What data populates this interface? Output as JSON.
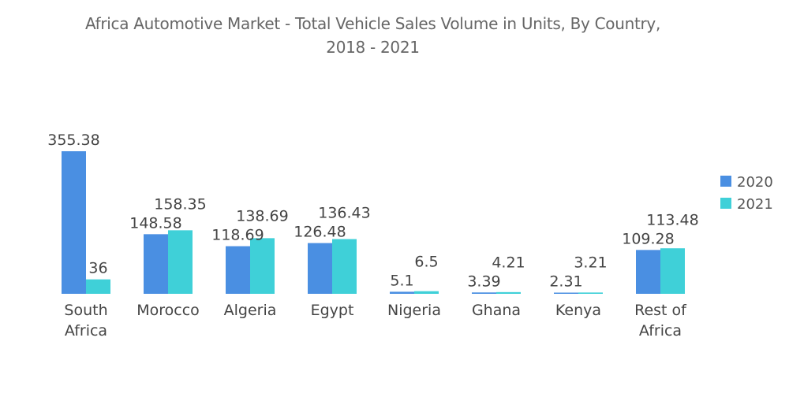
{
  "chart_data": {
    "type": "bar",
    "title_line1": "Africa Automotive Market - Total Vehicle Sales Volume in Units, By Country,",
    "title_line2": "2018 - 2021",
    "categories": [
      [
        "South",
        "Africa"
      ],
      [
        "Morocco"
      ],
      [
        "Algeria"
      ],
      [
        "Egypt"
      ],
      [
        "Nigeria"
      ],
      [
        "Ghana"
      ],
      [
        "Kenya"
      ],
      [
        "Rest of",
        "Africa"
      ]
    ],
    "series": [
      {
        "name": "2020",
        "color": "#4a8fe2",
        "values": [
          355.38,
          148.58,
          118.69,
          126.48,
          5.1,
          3.39,
          2.31,
          109.28
        ]
      },
      {
        "name": "2021",
        "color": "#3fd0d8",
        "values": [
          36,
          158.35,
          138.69,
          136.43,
          6.5,
          4.21,
          3.21,
          113.48
        ]
      }
    ],
    "legend": "right",
    "grid": false,
    "ylim": [
      0,
      355.38
    ]
  }
}
